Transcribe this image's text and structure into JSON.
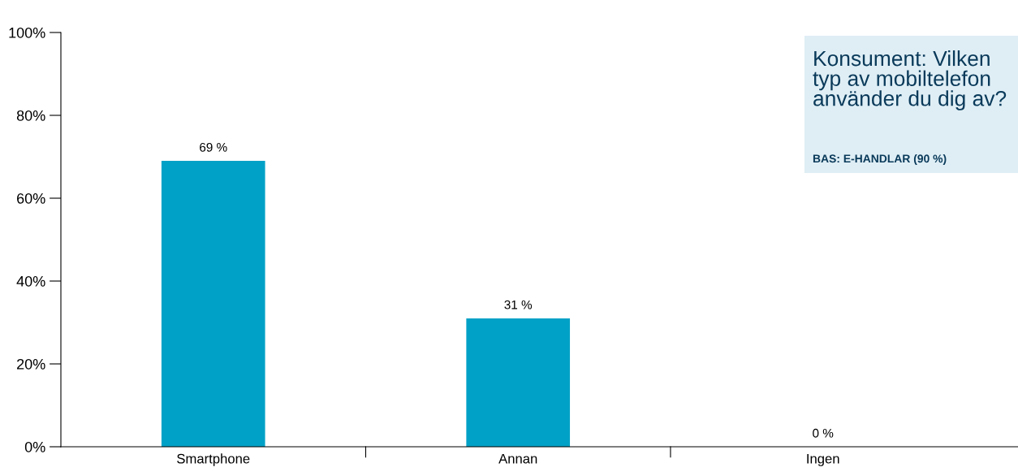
{
  "chart_data": {
    "type": "bar",
    "title": "Konsument: Vilken typ av mobiltelefon använder du dig av?",
    "subtitle": "BAS: E-HANDLAR (90 %)",
    "categories": [
      "Smartphone",
      "Annan",
      "Ingen"
    ],
    "values": [
      69,
      31,
      0
    ],
    "value_labels": [
      "69 %",
      "31 %",
      "0 %"
    ],
    "color": "#00a1c6",
    "ylim": [
      0,
      100
    ],
    "yticks": [
      {
        "value": 0,
        "label": "0%"
      },
      {
        "value": 20,
        "label": "20%"
      },
      {
        "value": 40,
        "label": "40%"
      },
      {
        "value": 60,
        "label": "60%"
      },
      {
        "value": 80,
        "label": "80%"
      },
      {
        "value": 100,
        "label": "100%"
      }
    ],
    "grid": false,
    "legend": false
  }
}
